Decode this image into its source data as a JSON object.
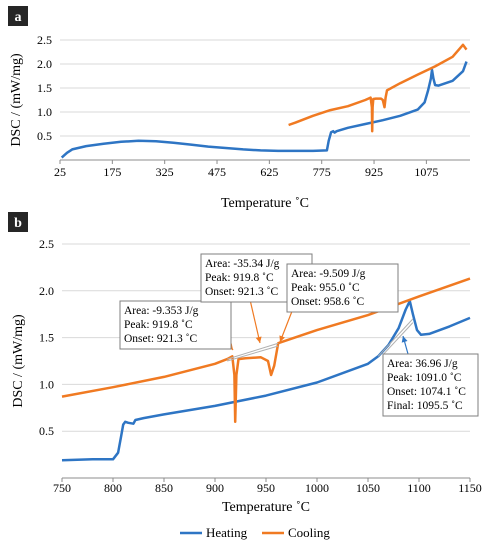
{
  "chart_data": [
    {
      "panel_label": "a",
      "type": "line",
      "xlabel": "Temperature ˚C",
      "ylabel": "DSC / (mW/mg)",
      "xlim": [
        25,
        1200
      ],
      "ylim": [
        0,
        2.5
      ],
      "x_ticks": [
        25,
        175,
        325,
        475,
        625,
        775,
        925,
        1075
      ],
      "y_ticks": [
        0.5,
        1.0,
        1.5,
        2.0,
        2.5
      ],
      "y_tick_labels": [
        "0.5",
        "1.0",
        "1.5",
        "2.0",
        "2.5"
      ],
      "grid": "horizontal",
      "series": [
        {
          "name": "Heating",
          "x": [
            30,
            45,
            60,
            100,
            150,
            200,
            250,
            300,
            350,
            400,
            450,
            500,
            550,
            600,
            650,
            700,
            750,
            790,
            795,
            802,
            808,
            812,
            818,
            850,
            900,
            950,
            1000,
            1050,
            1070,
            1080,
            1088,
            1091,
            1095,
            1100,
            1110,
            1150,
            1180,
            1190
          ],
          "y": [
            0.05,
            0.15,
            0.22,
            0.29,
            0.34,
            0.38,
            0.4,
            0.39,
            0.36,
            0.32,
            0.28,
            0.25,
            0.22,
            0.2,
            0.19,
            0.19,
            0.19,
            0.2,
            0.4,
            0.58,
            0.6,
            0.57,
            0.6,
            0.67,
            0.75,
            0.83,
            0.92,
            1.05,
            1.2,
            1.45,
            1.7,
            1.88,
            1.7,
            1.56,
            1.55,
            1.65,
            1.85,
            2.05
          ]
        },
        {
          "name": "Cooling",
          "x": [
            680,
            700,
            750,
            800,
            850,
            900,
            915,
            919,
            919.8,
            921,
            923,
            930,
            945,
            950,
            955,
            958,
            962,
            1000,
            1050,
            1100,
            1150,
            1180,
            1190
          ],
          "y": [
            0.73,
            0.78,
            0.92,
            1.04,
            1.12,
            1.25,
            1.3,
            1.1,
            0.6,
            1.1,
            1.27,
            1.28,
            1.28,
            1.25,
            1.1,
            1.3,
            1.45,
            1.6,
            1.78,
            1.95,
            2.15,
            2.4,
            2.3
          ]
        }
      ]
    },
    {
      "panel_label": "b",
      "type": "line",
      "xlabel": "Temperature ˚C",
      "ylabel": "DSC / (mW/mg)",
      "xlim": [
        750,
        1150
      ],
      "ylim": [
        0,
        2.5
      ],
      "x_ticks": [
        750,
        800,
        850,
        900,
        950,
        1000,
        1050,
        1100,
        1150
      ],
      "y_ticks": [
        0.5,
        1.0,
        1.5,
        2.0,
        2.5
      ],
      "y_tick_labels": [
        "0.5",
        "1.0",
        "1.5",
        "2.0",
        "2.5"
      ],
      "grid": "horizontal",
      "legend": {
        "position": "bottom",
        "entries": [
          "Heating",
          "Cooling"
        ]
      },
      "series": [
        {
          "name": "Heating",
          "x": [
            750,
            780,
            800,
            805,
            808,
            810,
            812,
            815,
            820,
            822,
            830,
            850,
            900,
            950,
            1000,
            1050,
            1060,
            1070,
            1080,
            1087,
            1091,
            1094,
            1098,
            1102,
            1110,
            1130,
            1150
          ],
          "y": [
            0.19,
            0.2,
            0.2,
            0.27,
            0.45,
            0.57,
            0.6,
            0.59,
            0.58,
            0.62,
            0.64,
            0.68,
            0.77,
            0.88,
            1.02,
            1.22,
            1.3,
            1.42,
            1.6,
            1.8,
            1.89,
            1.75,
            1.58,
            1.53,
            1.54,
            1.62,
            1.71
          ]
        },
        {
          "name": "Cooling",
          "x": [
            750,
            800,
            850,
            900,
            912,
            917,
            919,
            919.8,
            921,
            923,
            930,
            945,
            952,
            955,
            958,
            962,
            1000,
            1050,
            1100,
            1150
          ],
          "y": [
            0.87,
            0.97,
            1.08,
            1.22,
            1.27,
            1.3,
            1.1,
            0.6,
            1.1,
            1.27,
            1.28,
            1.29,
            1.25,
            1.1,
            1.2,
            1.44,
            1.58,
            1.74,
            1.94,
            2.13
          ]
        }
      ],
      "annotations": [
        {
          "lines": [
            "Area: -9.353 J/g",
            "Peak: 919.8 ˚C",
            "Onset: 921.3 ˚C"
          ]
        },
        {
          "lines": [
            "Area: -35.34 J/g",
            "Peak: 919.8 ˚C",
            "Onset: 921.3 ˚C"
          ]
        },
        {
          "lines": [
            "Area: -9.509 J/g",
            "Peak: 955.0 ˚C",
            "Onset: 958.6 ˚C"
          ]
        },
        {
          "lines": [
            "Area: 36.96 J/g",
            "Peak: 1091.0 ˚C",
            "Onset: 1074.1 ˚C",
            "Final: 1095.5 ˚C"
          ]
        }
      ]
    }
  ],
  "colors": {
    "heating": "#2e75c4",
    "cooling": "#f07a22",
    "grid": "#d9d9d9",
    "label_bg": "#262626"
  }
}
